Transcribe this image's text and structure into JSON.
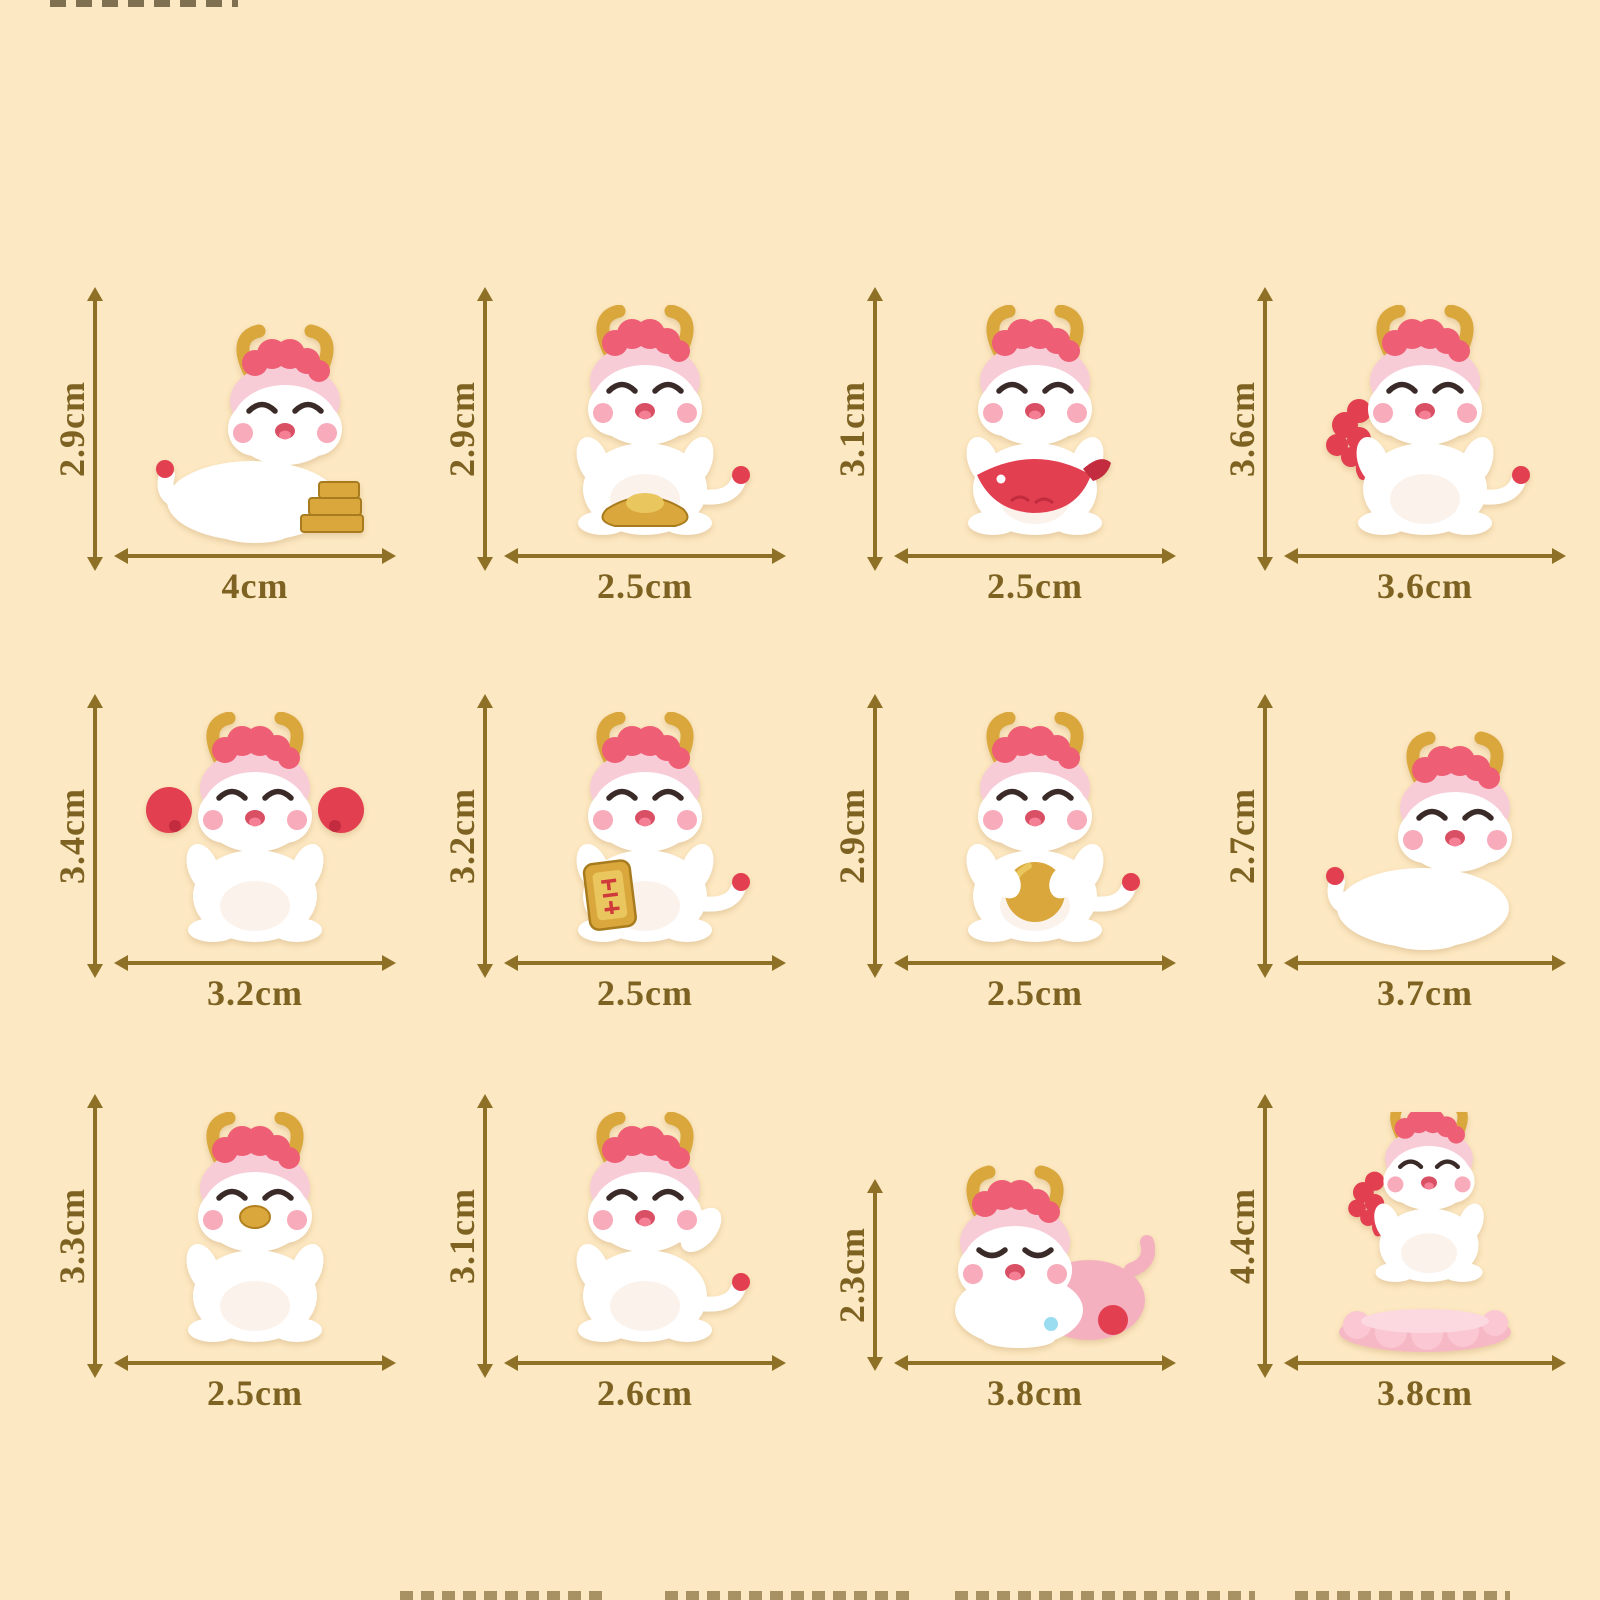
{
  "page": {
    "background_color": "#fce8c2",
    "arrow_color": "#8e7026",
    "label_color": "#7d6221"
  },
  "size_chart": {
    "unit": "cm",
    "items": [
      {
        "figure": "dragon-reclining-on-gold-bars",
        "height": "2.9cm",
        "width": "4cm"
      },
      {
        "figure": "dragon-holding-gold-ingot",
        "height": "2.9cm",
        "width": "2.5cm"
      },
      {
        "figure": "dragon-hugging-red-fish",
        "height": "3.1cm",
        "width": "2.5cm"
      },
      {
        "figure": "dragon-with-red-flower-tail",
        "height": "3.6cm",
        "width": "3.6cm"
      },
      {
        "figure": "dragon-with-red-balls",
        "height": "3.4cm",
        "width": "3.2cm"
      },
      {
        "figure": "dragon-holding-gold-sign",
        "height": "3.2cm",
        "width": "2.5cm"
      },
      {
        "figure": "dragon-holding-gold-ball",
        "height": "2.9cm",
        "width": "2.5cm"
      },
      {
        "figure": "dragon-lying-down",
        "height": "2.7cm",
        "width": "3.7cm"
      },
      {
        "figure": "dragon-with-gold-snout",
        "height": "3.3cm",
        "width": "2.5cm"
      },
      {
        "figure": "dragon-waving",
        "height": "3.1cm",
        "width": "2.6cm"
      },
      {
        "figure": "dragon-sleeping",
        "height": "2.3cm",
        "width": "3.8cm"
      },
      {
        "figure": "dragon-on-pink-lotus",
        "height": "4.4cm",
        "width": "3.8cm"
      }
    ]
  }
}
